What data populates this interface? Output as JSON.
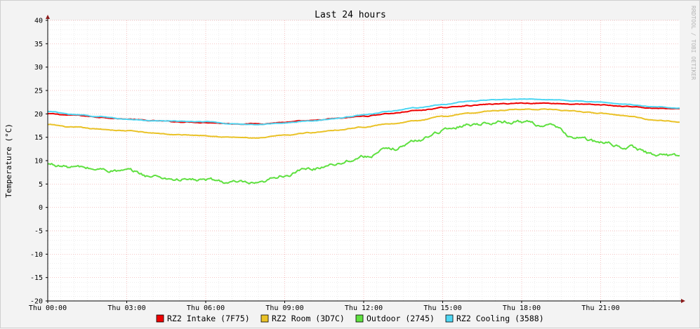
{
  "chart_data": {
    "type": "line",
    "title": "Last 24 hours",
    "ylabel": "Temperature (°C)",
    "watermark": "RRDTOOL / TOBI OETIKER",
    "ylim": [
      -20,
      40
    ],
    "yticks": [
      "40",
      "35",
      "30",
      "25",
      "20",
      "15",
      "10",
      "5",
      "0",
      "-5",
      "-10",
      "-15",
      "-20"
    ],
    "xlim": [
      0,
      24
    ],
    "xticks": [
      {
        "h": 0,
        "label": "Thu 00:00"
      },
      {
        "h": 3,
        "label": "Thu 03:00"
      },
      {
        "h": 6,
        "label": "Thu 06:00"
      },
      {
        "h": 9,
        "label": "Thu 09:00"
      },
      {
        "h": 12,
        "label": "Thu 12:00"
      },
      {
        "h": 15,
        "label": "Thu 15:00"
      },
      {
        "h": 18,
        "label": "Thu 18:00"
      },
      {
        "h": 21,
        "label": "Thu 21:00"
      }
    ],
    "grid": true,
    "legend_position": "bottom",
    "x": [
      0,
      1,
      2,
      3,
      4,
      5,
      6,
      7,
      8,
      9,
      10,
      11,
      12,
      13,
      14,
      15,
      16,
      17,
      18,
      19,
      20,
      21,
      22,
      23,
      24
    ],
    "series": [
      {
        "name": "RZ2 Intake (7F75)",
        "color": "#ee0000",
        "values": [
          20,
          19.7,
          19.3,
          18.9,
          18.5,
          18.3,
          18.2,
          17.9,
          17.9,
          18.2,
          18.5,
          19,
          19.5,
          20.1,
          20.7,
          21.3,
          21.8,
          22.1,
          22.3,
          22.3,
          22.1,
          21.9,
          21.6,
          21.2,
          21
        ]
      },
      {
        "name": "RZ2 Room (3D7C)",
        "color": "#eac227",
        "values": [
          17.7,
          17.1,
          16.7,
          16.4,
          15.9,
          15.5,
          15.4,
          15,
          14.8,
          15.4,
          16,
          16.6,
          17.2,
          17.9,
          18.5,
          19.4,
          20.2,
          20.7,
          21,
          21,
          20.5,
          20.1,
          19.6,
          18.7,
          18.4
        ]
      },
      {
        "name": "Outdoor (2745)",
        "color": "#5fe040",
        "values": [
          9.2,
          8.6,
          8.1,
          7.7,
          6.6,
          6,
          5.8,
          5.3,
          4.8,
          7,
          8.2,
          9.6,
          10.9,
          12.3,
          14.2,
          16.5,
          17.8,
          18.3,
          18.4,
          17.5,
          15,
          13.8,
          13,
          11.4,
          10.9
        ]
      },
      {
        "name": "RZ2 Cooling (3588)",
        "color": "#4ed6f2",
        "values": [
          20.5,
          19.8,
          19.4,
          18.9,
          18.5,
          18.4,
          18.3,
          17.9,
          17.7,
          18.1,
          18.5,
          19.1,
          19.8,
          20.6,
          21.3,
          22,
          22.7,
          23,
          23.1,
          23.1,
          22.8,
          22.5,
          22,
          21.5,
          21.3
        ]
      }
    ]
  }
}
